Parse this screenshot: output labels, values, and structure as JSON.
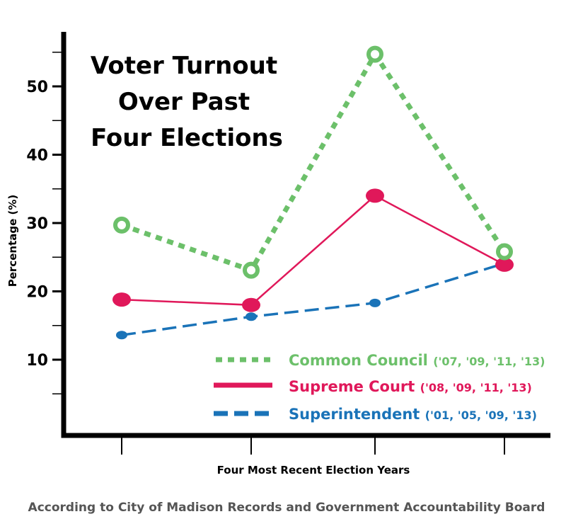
{
  "chart_data": {
    "type": "line",
    "title_lines": [
      "Voter Turnout",
      "Over Past",
      "Four Elections"
    ],
    "xlabel": "Four Most Recent Election Years",
    "ylabel": "Percentage (%)",
    "ylim": [
      0,
      57
    ],
    "yticks_labeled": [
      10,
      20,
      30,
      40,
      50
    ],
    "yticks_minor": [
      5,
      15,
      25,
      35,
      45,
      55
    ],
    "x": [
      1,
      2,
      3,
      4
    ],
    "grid": false,
    "legend_position": "bottom-right",
    "series": [
      {
        "name": "Common Council",
        "years": "('07, '09, '11, '13)",
        "values": [
          29.7,
          23.1,
          54.7,
          25.8
        ],
        "color": "#6cc06a",
        "style": "dotted",
        "marker": "ring"
      },
      {
        "name": "Supreme Court",
        "years": "('08, '09, '11, '13)",
        "values": [
          18.8,
          18.0,
          34.0,
          23.9
        ],
        "color": "#e0185a",
        "style": "solid",
        "marker": "dot-large"
      },
      {
        "name": "Superintendent",
        "years": "('01, '05, '09, '13)",
        "values": [
          13.6,
          16.3,
          18.3,
          24.1
        ],
        "color": "#1a73b8",
        "style": "dashed",
        "marker": "dot-small"
      }
    ],
    "source": "According to City of Madison Records and Government Accountability Board"
  }
}
